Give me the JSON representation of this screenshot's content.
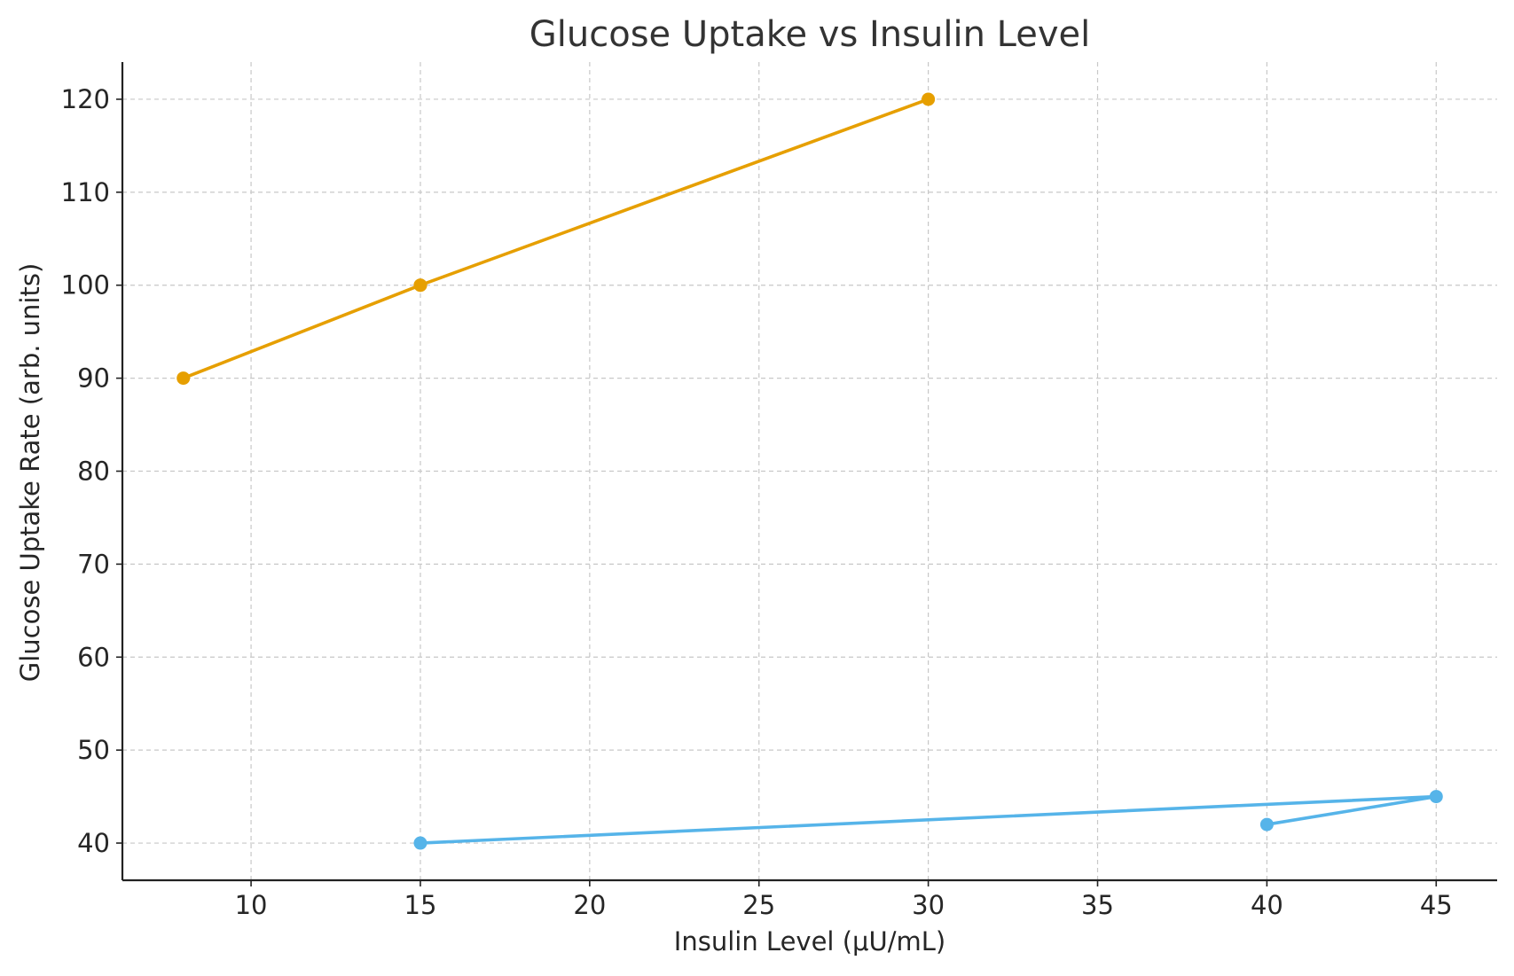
{
  "chart_data": {
    "type": "line",
    "title": "Glucose Uptake vs Insulin Level",
    "xlabel": "Insulin Level (μU/mL)",
    "ylabel": "Glucose Uptake Rate (arb. units)",
    "xlim": [
      6.2,
      46.8
    ],
    "ylim": [
      36,
      124
    ],
    "x_ticks": [
      10,
      15,
      20,
      25,
      30,
      35,
      40,
      45
    ],
    "y_ticks": [
      40,
      50,
      60,
      70,
      80,
      90,
      100,
      110,
      120
    ],
    "grid": true,
    "legend": "none",
    "series": [
      {
        "color": "#E69F00",
        "points": [
          {
            "x": 8,
            "y": 90
          },
          {
            "x": 15,
            "y": 100
          },
          {
            "x": 30,
            "y": 120
          },
          {
            "x": 15,
            "y": 100
          }
        ]
      },
      {
        "color": "#56B4E9",
        "points": [
          {
            "x": 40,
            "y": 42
          },
          {
            "x": 45,
            "y": 45
          },
          {
            "x": 15,
            "y": 40
          }
        ]
      }
    ]
  }
}
